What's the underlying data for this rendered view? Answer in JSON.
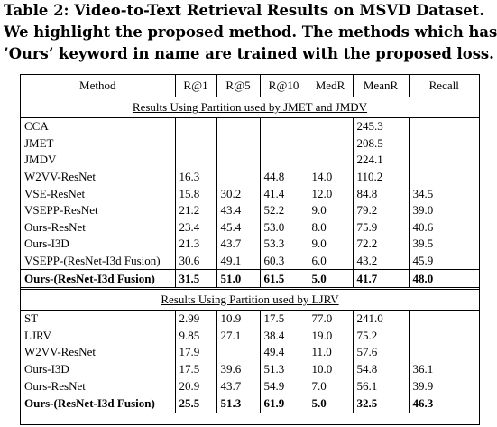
{
  "caption": {
    "line1": "Table 2: Video-to-Text Retrieval Results on MSVD Dataset.",
    "line2": "We highlight the proposed method. The methods which has",
    "line3": "’Ours’ keyword in name are trained with the proposed loss."
  },
  "table": {
    "headers": [
      "Method",
      "R@1",
      "R@5",
      "R@10",
      "MedR",
      "MeanR",
      "Recall"
    ],
    "section1_title": "Results Using Partition used by JMET and JMDV",
    "section1_rows": [
      {
        "method": "CCA",
        "r1": "",
        "r5": "",
        "r10": "",
        "medr": "",
        "meanr": "245.3",
        "recall": ""
      },
      {
        "method": "JMET",
        "r1": "",
        "r5": "",
        "r10": "",
        "medr": "",
        "meanr": "208.5",
        "recall": ""
      },
      {
        "method": "JMDV",
        "r1": "",
        "r5": "",
        "r10": "",
        "medr": "",
        "meanr": "224.1",
        "recall": ""
      },
      {
        "method": "W2VV-ResNet",
        "r1": "16.3",
        "r5": "",
        "r10": "44.8",
        "medr": "14.0",
        "meanr": "110.2",
        "recall": ""
      },
      {
        "method": "VSE-ResNet",
        "r1": "15.8",
        "r5": "30.2",
        "r10": "41.4",
        "medr": "12.0",
        "meanr": "84.8",
        "recall": "34.5"
      },
      {
        "method": "VSEPP-ResNet",
        "r1": "21.2",
        "r5": "43.4",
        "r10": "52.2",
        "medr": "9.0",
        "meanr": "79.2",
        "recall": "39.0"
      },
      {
        "method": "Ours-ResNet",
        "r1": "23.4",
        "r5": "45.4",
        "r10": "53.0",
        "medr": "8.0",
        "meanr": "75.9",
        "recall": "40.6"
      },
      {
        "method": "Ours-I3D",
        "r1": "21.3",
        "r5": "43.7",
        "r10": "53.3",
        "medr": "9.0",
        "meanr": "72.2",
        "recall": "39.5"
      },
      {
        "method": "VSEPP-(ResNet-I3d Fusion)",
        "r1": "30.6",
        "r5": "49.1",
        "r10": "60.3",
        "medr": "6.0",
        "meanr": "43.2",
        "recall": "45.9"
      },
      {
        "method": "Ours-(ResNet-I3d Fusion)",
        "r1": "31.5",
        "r5": "51.0",
        "r10": "61.5",
        "medr": "5.0",
        "meanr": "41.7",
        "recall": "48.0"
      }
    ],
    "section2_title": "Results Using Partition used by LJRV",
    "section2_rows": [
      {
        "method": "ST",
        "r1": "2.99",
        "r5": "10.9",
        "r10": "17.5",
        "medr": "77.0",
        "meanr": "241.0",
        "recall": ""
      },
      {
        "method": "LJRV",
        "r1": "9.85",
        "r5": "27.1",
        "r10": "38.4",
        "medr": "19.0",
        "meanr": "75.2",
        "recall": ""
      },
      {
        "method": "W2VV-ResNet",
        "r1": "17.9",
        "r5": "",
        "r10": "49.4",
        "medr": "11.0",
        "meanr": "57.6",
        "recall": ""
      },
      {
        "method": "Ours-I3D",
        "r1": "17.5",
        "r5": "39.6",
        "r10": "51.3",
        "medr": "10.0",
        "meanr": "54.8",
        "recall": "36.1"
      },
      {
        "method": "Ours-ResNet",
        "r1": "20.9",
        "r5": "43.7",
        "r10": "54.9",
        "medr": "7.0",
        "meanr": "56.1",
        "recall": "39.9"
      },
      {
        "method": "Ours-(ResNet-I3d Fusion)",
        "r1": "25.5",
        "r5": "51.3",
        "r10": "61.9",
        "medr": "5.0",
        "meanr": "32.5",
        "recall": "46.3"
      }
    ]
  }
}
